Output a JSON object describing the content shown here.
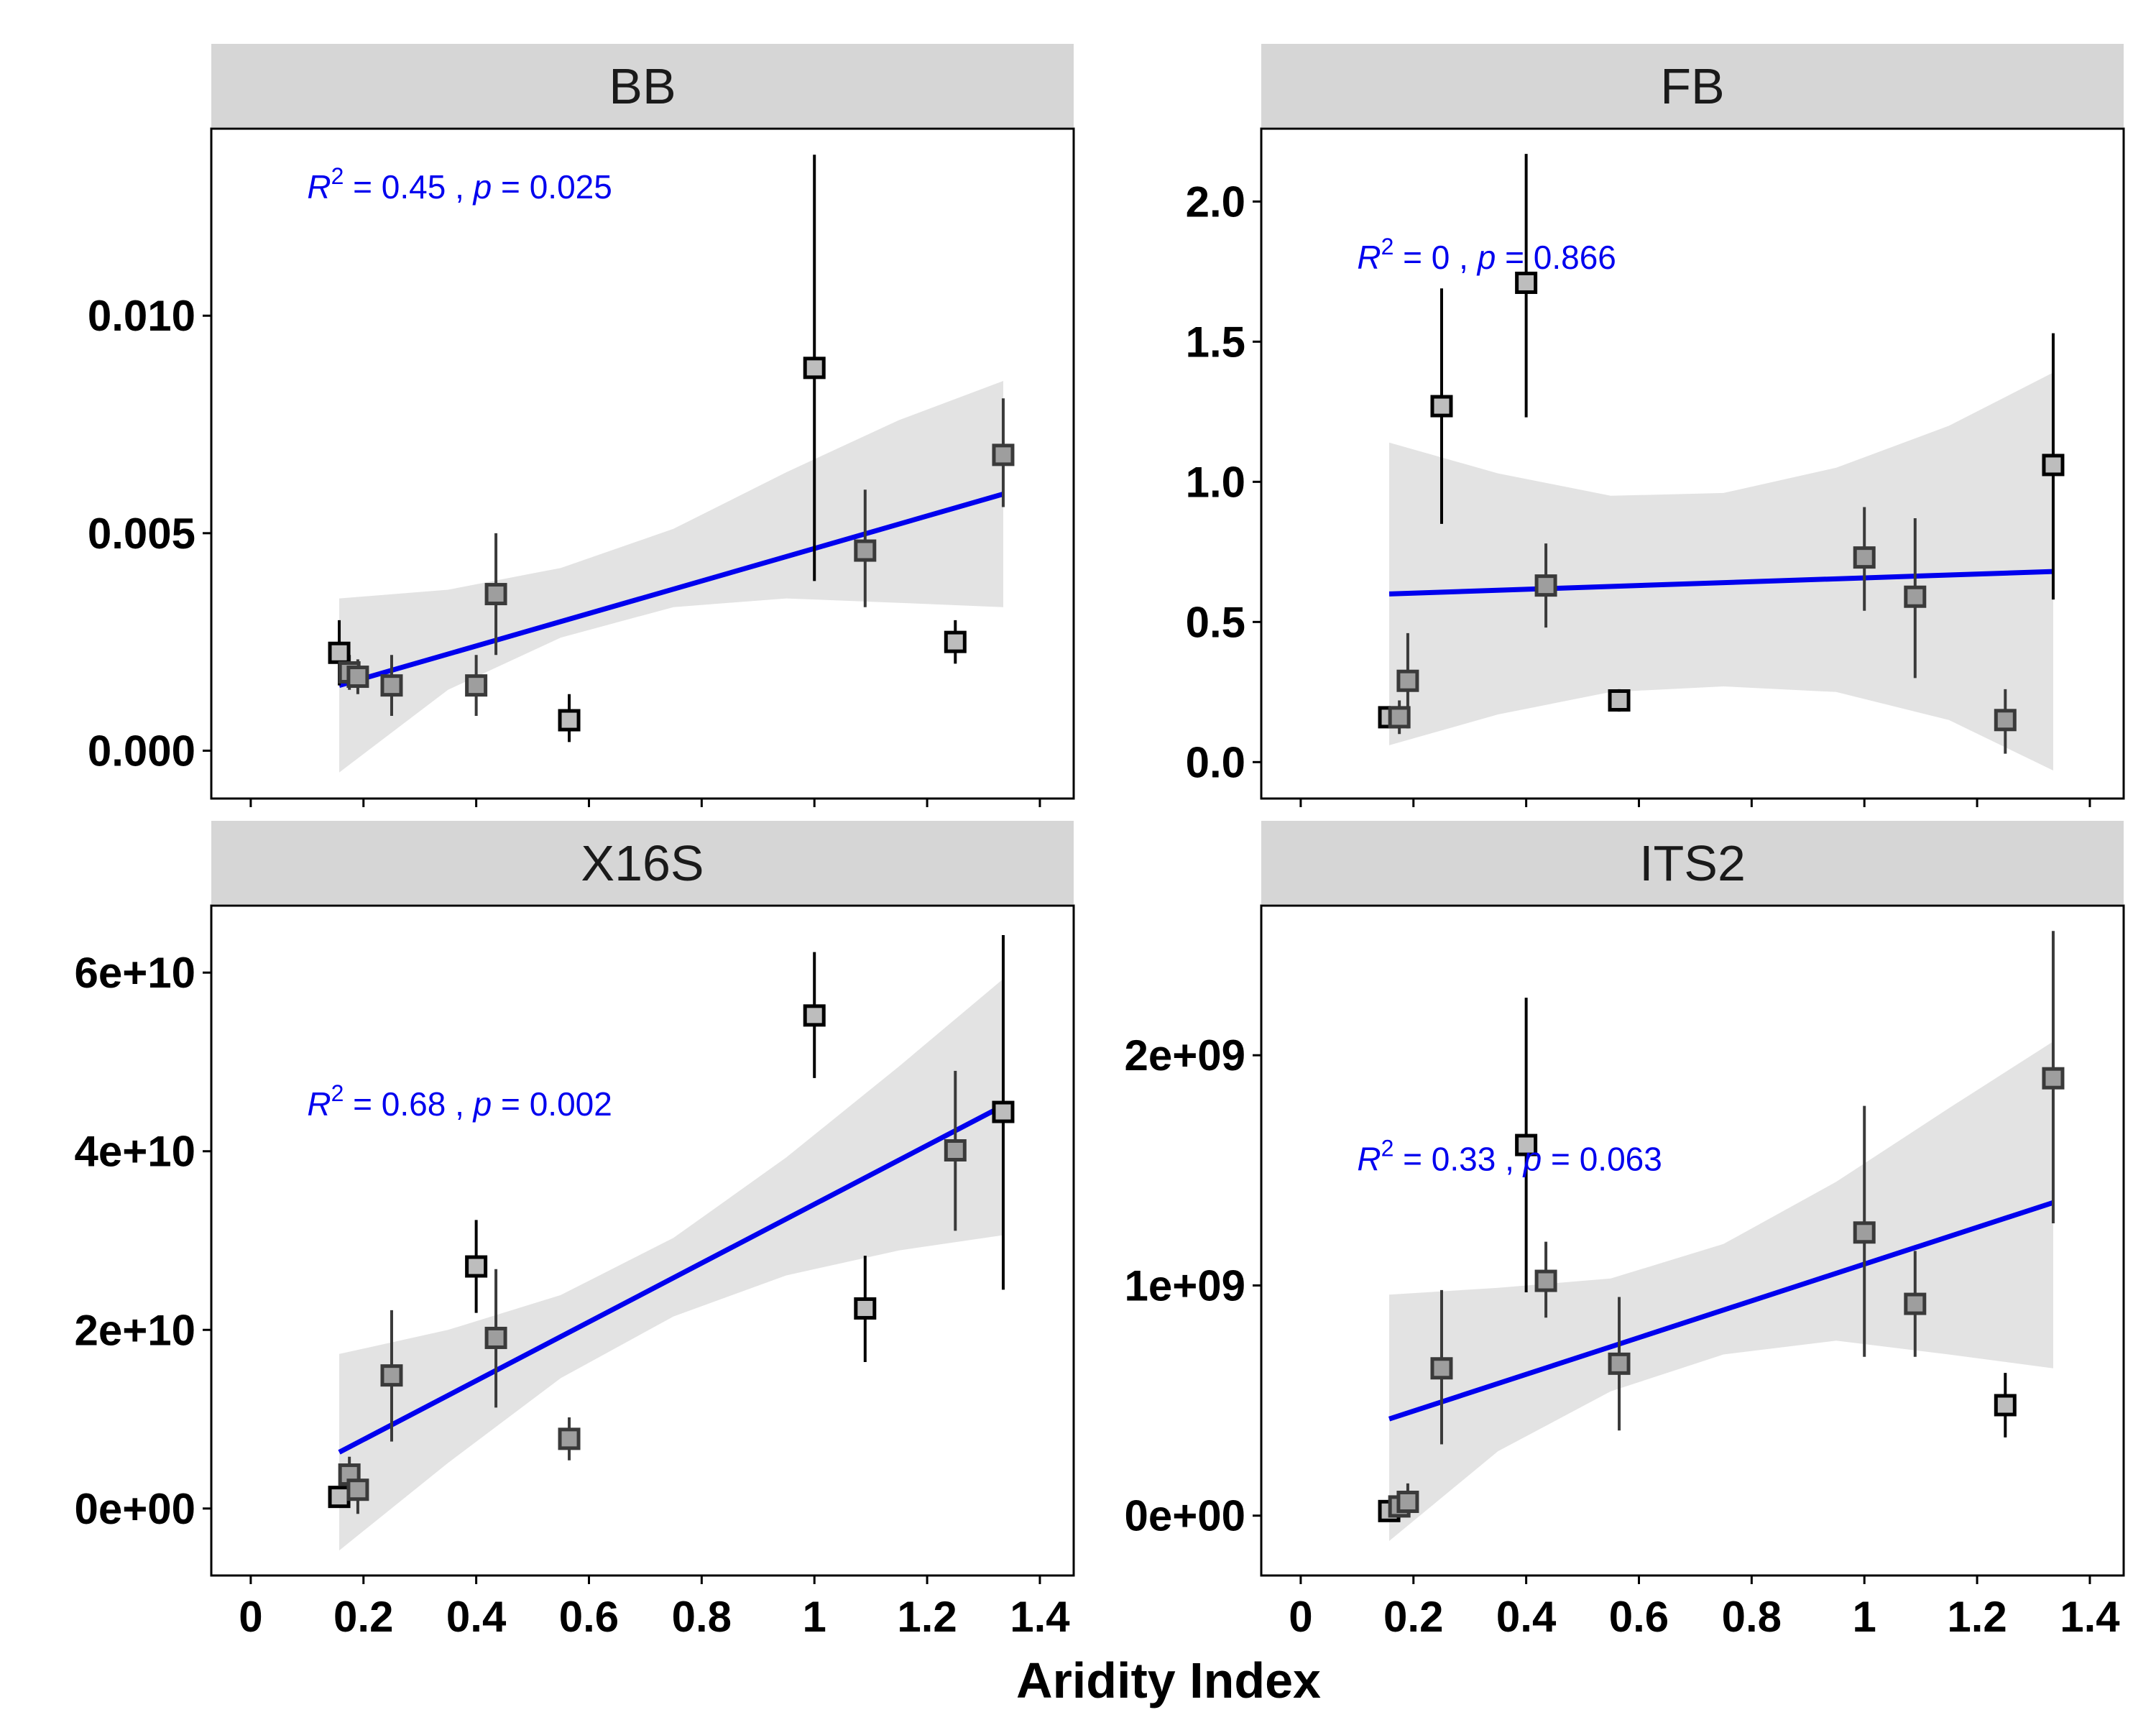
{
  "colors": {
    "fit_line": "#0000ee",
    "ribbon": "#e3e3e3",
    "strip_bg": "#d6d6d6",
    "annotation": "#0000ee",
    "point_fill_dark": "#bdbdbd",
    "point_fill_light": "#9e9e9e",
    "panel_border": "#000000"
  },
  "x_axis_title": "Aridity Index",
  "chart_data": [
    {
      "type": "scatter",
      "panel": "BB",
      "xlabel": "Aridity Index",
      "ylabel": "",
      "xlim": [
        -0.07,
        1.46
      ],
      "ylim": [
        -0.0011,
        0.0143
      ],
      "x_ticks": [
        0,
        0.2,
        0.4,
        0.6,
        0.8,
        1,
        1.2,
        1.4
      ],
      "x_tick_labels": [
        "0",
        "0.2",
        "0.4",
        "0.6",
        "0.8",
        "1",
        "1.2",
        "1.4"
      ],
      "y_ticks": [
        0,
        0.005,
        0.01
      ],
      "y_tick_labels": [
        "0.000",
        "0.005",
        "0.010"
      ],
      "annotation": {
        "r2": "0.45",
        "p": "0.025",
        "x": 0.1,
        "y": 0.0127
      },
      "points": [
        {
          "x": 0.157,
          "y": 0.00225,
          "ymin": 0.0015,
          "ymax": 0.003,
          "shade": "dark"
        },
        {
          "x": 0.175,
          "y": 0.0018,
          "ymin": 0.0014,
          "ymax": 0.0022,
          "shade": "light"
        },
        {
          "x": 0.19,
          "y": 0.0017,
          "ymin": 0.0013,
          "ymax": 0.0021,
          "shade": "light"
        },
        {
          "x": 0.25,
          "y": 0.0015,
          "ymin": 0.0008,
          "ymax": 0.0022,
          "shade": "light"
        },
        {
          "x": 0.4,
          "y": 0.0015,
          "ymin": 0.0008,
          "ymax": 0.0022,
          "shade": "light"
        },
        {
          "x": 0.435,
          "y": 0.0036,
          "ymin": 0.0022,
          "ymax": 0.005,
          "shade": "light"
        },
        {
          "x": 0.565,
          "y": 0.0007,
          "ymin": 0.0002,
          "ymax": 0.0013,
          "shade": "dark"
        },
        {
          "x": 1.0,
          "y": 0.0088,
          "ymin": 0.0039,
          "ymax": 0.0137,
          "shade": "dark"
        },
        {
          "x": 1.09,
          "y": 0.0046,
          "ymin": 0.0033,
          "ymax": 0.006,
          "shade": "light"
        },
        {
          "x": 1.25,
          "y": 0.0025,
          "ymin": 0.002,
          "ymax": 0.003,
          "shade": "dark"
        },
        {
          "x": 1.335,
          "y": 0.0068,
          "ymin": 0.0056,
          "ymax": 0.0081,
          "shade": "light"
        }
      ],
      "fit": {
        "x": [
          0.157,
          1.335
        ],
        "y": [
          0.0015,
          0.0059
        ]
      },
      "ribbon": {
        "x": [
          0.157,
          0.35,
          0.55,
          0.75,
          0.95,
          1.15,
          1.335
        ],
        "lower": [
          -0.0005,
          0.0014,
          0.0026,
          0.0033,
          0.0035,
          0.0034,
          0.0033
        ],
        "upper": [
          0.0035,
          0.0037,
          0.0042,
          0.0051,
          0.0064,
          0.0076,
          0.0085
        ]
      }
    },
    {
      "type": "scatter",
      "panel": "FB",
      "xlabel": "Aridity Index",
      "ylabel": "",
      "xlim": [
        -0.07,
        1.46
      ],
      "ylim": [
        -0.13,
        2.26
      ],
      "x_ticks": [
        0,
        0.2,
        0.4,
        0.6,
        0.8,
        1,
        1.2,
        1.4
      ],
      "x_tick_labels": [
        "0",
        "0.2",
        "0.4",
        "0.6",
        "0.8",
        "1",
        "1.2",
        "1.4"
      ],
      "y_ticks": [
        0,
        0.5,
        1,
        1.5,
        2
      ],
      "y_tick_labels": [
        "0.0",
        "0.5",
        "1.0",
        "1.5",
        "2.0"
      ],
      "annotation": {
        "r2": "0",
        "p": "0.866",
        "x": 0.1,
        "y": 1.76
      },
      "points": [
        {
          "x": 0.157,
          "y": 0.16,
          "ymin": 0.12,
          "ymax": 0.2,
          "shade": "dark"
        },
        {
          "x": 0.175,
          "y": 0.16,
          "ymin": 0.1,
          "ymax": 0.22,
          "shade": "light"
        },
        {
          "x": 0.19,
          "y": 0.29,
          "ymin": 0.12,
          "ymax": 0.46,
          "shade": "light"
        },
        {
          "x": 0.25,
          "y": 1.27,
          "ymin": 0.85,
          "ymax": 1.69,
          "shade": "dark"
        },
        {
          "x": 0.4,
          "y": 1.71,
          "ymin": 1.23,
          "ymax": 2.17,
          "shade": "dark"
        },
        {
          "x": 0.435,
          "y": 0.63,
          "ymin": 0.48,
          "ymax": 0.78,
          "shade": "light"
        },
        {
          "x": 0.565,
          "y": 0.22,
          "ymin": 0.18,
          "ymax": 0.26,
          "shade": "dark"
        },
        {
          "x": 1.0,
          "y": 0.73,
          "ymin": 0.54,
          "ymax": 0.91,
          "shade": "light"
        },
        {
          "x": 1.09,
          "y": 0.59,
          "ymin": 0.3,
          "ymax": 0.87,
          "shade": "light"
        },
        {
          "x": 1.25,
          "y": 0.15,
          "ymin": 0.03,
          "ymax": 0.26,
          "shade": "light"
        },
        {
          "x": 1.335,
          "y": 1.06,
          "ymin": 0.58,
          "ymax": 1.53,
          "shade": "dark"
        }
      ],
      "fit": {
        "x": [
          0.157,
          1.335
        ],
        "y": [
          0.6,
          0.68
        ]
      },
      "ribbon": {
        "x": [
          0.157,
          0.35,
          0.55,
          0.75,
          0.95,
          1.15,
          1.335
        ],
        "lower": [
          0.06,
          0.17,
          0.25,
          0.27,
          0.25,
          0.15,
          -0.03
        ],
        "upper": [
          1.14,
          1.03,
          0.95,
          0.96,
          1.05,
          1.2,
          1.39
        ]
      }
    },
    {
      "type": "scatter",
      "panel": "X16S",
      "xlabel": "Aridity Index",
      "ylabel": "",
      "xlim": [
        -0.07,
        1.46
      ],
      "ylim": [
        -7500000000,
        67500000000
      ],
      "x_ticks": [
        0,
        0.2,
        0.4,
        0.6,
        0.8,
        1,
        1.2,
        1.4
      ],
      "x_tick_labels": [
        "0",
        "0.2",
        "0.4",
        "0.6",
        "0.8",
        "1",
        "1.2",
        "1.4"
      ],
      "y_ticks": [
        0,
        20000000000,
        40000000000,
        60000000000
      ],
      "y_tick_labels": [
        "0e+00",
        "2e+10",
        "4e+10",
        "6e+10"
      ],
      "annotation": {
        "r2": "0.68",
        "p": "0.002",
        "x": 0.1,
        "y": 44000000000
      },
      "points": [
        {
          "x": 0.157,
          "y": 1300000000,
          "ymin": 300000000,
          "ymax": 2300000000,
          "shade": "dark"
        },
        {
          "x": 0.175,
          "y": 3800000000,
          "ymin": 1800000000,
          "ymax": 5800000000,
          "shade": "light"
        },
        {
          "x": 0.19,
          "y": 2100000000,
          "ymin": -600000000,
          "ymax": 4800000000,
          "shade": "light"
        },
        {
          "x": 0.25,
          "y": 14900000000,
          "ymin": 7500000000,
          "ymax": 22200000000,
          "shade": "light"
        },
        {
          "x": 0.4,
          "y": 27100000000,
          "ymin": 21900000000,
          "ymax": 32300000000,
          "shade": "dark"
        },
        {
          "x": 0.435,
          "y": 19100000000,
          "ymin": 11300000000,
          "ymax": 26800000000,
          "shade": "light"
        },
        {
          "x": 0.565,
          "y": 7800000000,
          "ymin": 5400000000,
          "ymax": 10200000000,
          "shade": "light"
        },
        {
          "x": 1.0,
          "y": 55200000000,
          "ymin": 48200000000,
          "ymax": 62300000000,
          "shade": "dark"
        },
        {
          "x": 1.09,
          "y": 22400000000,
          "ymin": 16400000000,
          "ymax": 28300000000,
          "shade": "dark"
        },
        {
          "x": 1.25,
          "y": 40100000000,
          "ymin": 31100000000,
          "ymax": 49000000000,
          "shade": "light"
        },
        {
          "x": 1.335,
          "y": 44400000000,
          "ymin": 24500000000,
          "ymax": 64200000000,
          "shade": "dark"
        }
      ],
      "fit": {
        "x": [
          0.157,
          1.335
        ],
        "y": [
          6300000000,
          45100000000
        ]
      },
      "ribbon": {
        "x": [
          0.157,
          0.35,
          0.55,
          0.75,
          0.95,
          1.15,
          1.335
        ],
        "lower": [
          -4700000000,
          5100000000,
          14600000000,
          21500000000,
          26100000000,
          28900000000,
          30600000000
        ],
        "upper": [
          17300000000,
          20000000000,
          23900000000,
          30300000000,
          39300000000,
          49500000000,
          59300000000
        ]
      }
    },
    {
      "type": "scatter",
      "panel": "ITS2",
      "xlabel": "Aridity Index",
      "ylabel": "",
      "xlim": [
        -0.07,
        1.46
      ],
      "ylim": [
        -260000000,
        2650000000
      ],
      "x_ticks": [
        0,
        0.2,
        0.4,
        0.6,
        0.8,
        1,
        1.2,
        1.4
      ],
      "x_tick_labels": [
        "0",
        "0.2",
        "0.4",
        "0.6",
        "0.8",
        "1",
        "1.2",
        "1.4"
      ],
      "y_ticks": [
        0,
        1000000000,
        2000000000
      ],
      "y_tick_labels": [
        "0e+00",
        "1e+09",
        "2e+09"
      ],
      "annotation": {
        "r2": "0.33",
        "p": "0.063",
        "x": 0.1,
        "y": 1500000000
      },
      "points": [
        {
          "x": 0.157,
          "y": 20000000,
          "ymin": 0,
          "ymax": 40000000,
          "shade": "dark"
        },
        {
          "x": 0.175,
          "y": 40000000,
          "ymin": 0,
          "ymax": 90000000,
          "shade": "light"
        },
        {
          "x": 0.19,
          "y": 60000000,
          "ymin": 0,
          "ymax": 140000000,
          "shade": "light"
        },
        {
          "x": 0.25,
          "y": 640000000,
          "ymin": 310000000,
          "ymax": 980000000,
          "shade": "light"
        },
        {
          "x": 0.4,
          "y": 1610000000,
          "ymin": 970000000,
          "ymax": 2250000000,
          "shade": "dark"
        },
        {
          "x": 0.435,
          "y": 1020000000,
          "ymin": 860000000,
          "ymax": 1190000000,
          "shade": "light"
        },
        {
          "x": 0.565,
          "y": 660000000,
          "ymin": 370000000,
          "ymax": 950000000,
          "shade": "light"
        },
        {
          "x": 1.0,
          "y": 1230000000,
          "ymin": 690000000,
          "ymax": 1780000000,
          "shade": "light"
        },
        {
          "x": 1.09,
          "y": 920000000,
          "ymin": 690000000,
          "ymax": 1150000000,
          "shade": "light"
        },
        {
          "x": 1.25,
          "y": 480000000,
          "ymin": 340000000,
          "ymax": 620000000,
          "shade": "dark"
        },
        {
          "x": 1.335,
          "y": 1900000000,
          "ymin": 1270000000,
          "ymax": 2540000000,
          "shade": "light"
        }
      ],
      "fit": {
        "x": [
          0.157,
          1.335
        ],
        "y": [
          420000000,
          1360000000
        ]
      },
      "ribbon": {
        "x": [
          0.157,
          0.35,
          0.55,
          0.75,
          0.95,
          1.15,
          1.335
        ],
        "lower": [
          -110000000,
          280000000,
          540000000,
          700000000,
          760000000,
          700000000,
          640000000
        ],
        "upper": [
          960000000,
          990000000,
          1030000000,
          1180000000,
          1450000000,
          1770000000,
          2060000000
        ]
      }
    }
  ]
}
